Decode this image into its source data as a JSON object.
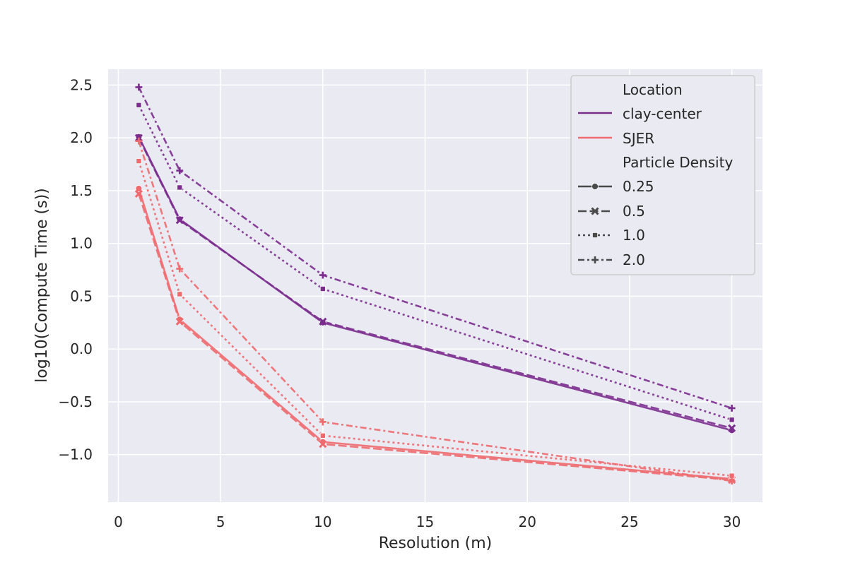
{
  "chart_data": {
    "type": "line",
    "xlabel": "Resolution (m)",
    "ylabel": "log10(Compute Time (s))",
    "xlim": [
      -0.5,
      31.5
    ],
    "ylim": [
      -1.45,
      2.65
    ],
    "x_ticks": [
      0,
      5,
      10,
      15,
      20,
      25,
      30
    ],
    "x_tick_labels": [
      "0",
      "5",
      "10",
      "15",
      "20",
      "25",
      "30"
    ],
    "y_ticks": [
      -1.0,
      -0.5,
      0.0,
      0.5,
      1.0,
      1.5,
      2.0,
      2.5
    ],
    "y_tick_labels": [
      "−1.0",
      "−0.5",
      "0.0",
      "0.5",
      "1.0",
      "1.5",
      "2.0",
      "2.5"
    ],
    "grid": true,
    "legend_position": "top-right",
    "legend": {
      "hue_title": "Location",
      "style_title": "Particle Density",
      "locations": [
        {
          "label": "clay-center",
          "color": "#7b2d8e"
        },
        {
          "label": "SJER",
          "color": "#ee6a6f"
        }
      ],
      "densities": [
        {
          "label": "0.25",
          "marker": "circle",
          "dash": "solid"
        },
        {
          "label": "0.5",
          "marker": "x",
          "dash": "dashed"
        },
        {
          "label": "1.0",
          "marker": "square",
          "dash": "dotted"
        },
        {
          "label": "2.0",
          "marker": "plus",
          "dash": "dashdot"
        }
      ]
    },
    "x": [
      1,
      3,
      10,
      30
    ],
    "series": [
      {
        "location": "clay-center",
        "density": "0.25",
        "values": [
          2.01,
          1.23,
          0.25,
          -0.77
        ]
      },
      {
        "location": "clay-center",
        "density": "0.5",
        "values": [
          2.0,
          1.22,
          0.26,
          -0.75
        ]
      },
      {
        "location": "clay-center",
        "density": "1.0",
        "values": [
          2.31,
          1.53,
          0.57,
          -0.67
        ]
      },
      {
        "location": "clay-center",
        "density": "2.0",
        "values": [
          2.48,
          1.69,
          0.7,
          -0.56
        ]
      },
      {
        "location": "SJER",
        "density": "0.25",
        "values": [
          1.52,
          0.28,
          -0.88,
          -1.23
        ]
      },
      {
        "location": "SJER",
        "density": "0.5",
        "values": [
          1.47,
          0.26,
          -0.9,
          -1.24
        ]
      },
      {
        "location": "SJER",
        "density": "1.0",
        "values": [
          1.78,
          0.52,
          -0.82,
          -1.2
        ]
      },
      {
        "location": "SJER",
        "density": "2.0",
        "values": [
          1.97,
          0.76,
          -0.69,
          -1.25
        ]
      }
    ]
  }
}
